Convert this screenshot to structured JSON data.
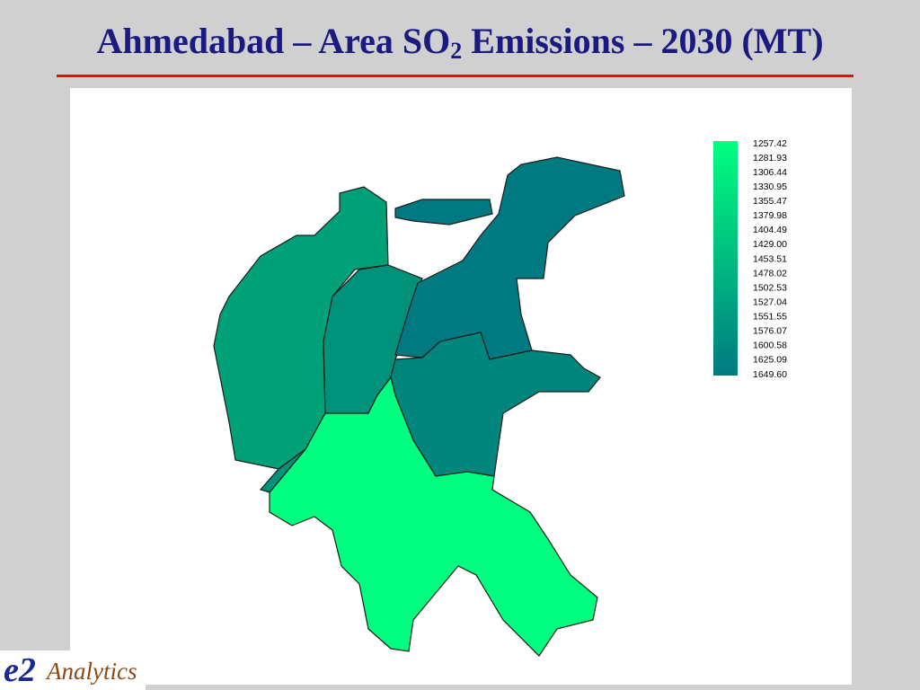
{
  "title": {
    "before": "Ahmedabad – Area SO",
    "subscript": "2",
    "after": " Emissions – 2030 (MT)"
  },
  "legend": {
    "labels": [
      "1257.42",
      "1281.93",
      "1306.44",
      "1330.95",
      "1355.47",
      "1379.98",
      "1404.49",
      "1429.00",
      "1453.51",
      "1478.02",
      "1502.53",
      "1527.04",
      "1551.55",
      "1576.07",
      "1600.58",
      "1625.09",
      "1649.60"
    ]
  },
  "logo": {
    "mark": "e2",
    "text": "Analytics"
  }
}
